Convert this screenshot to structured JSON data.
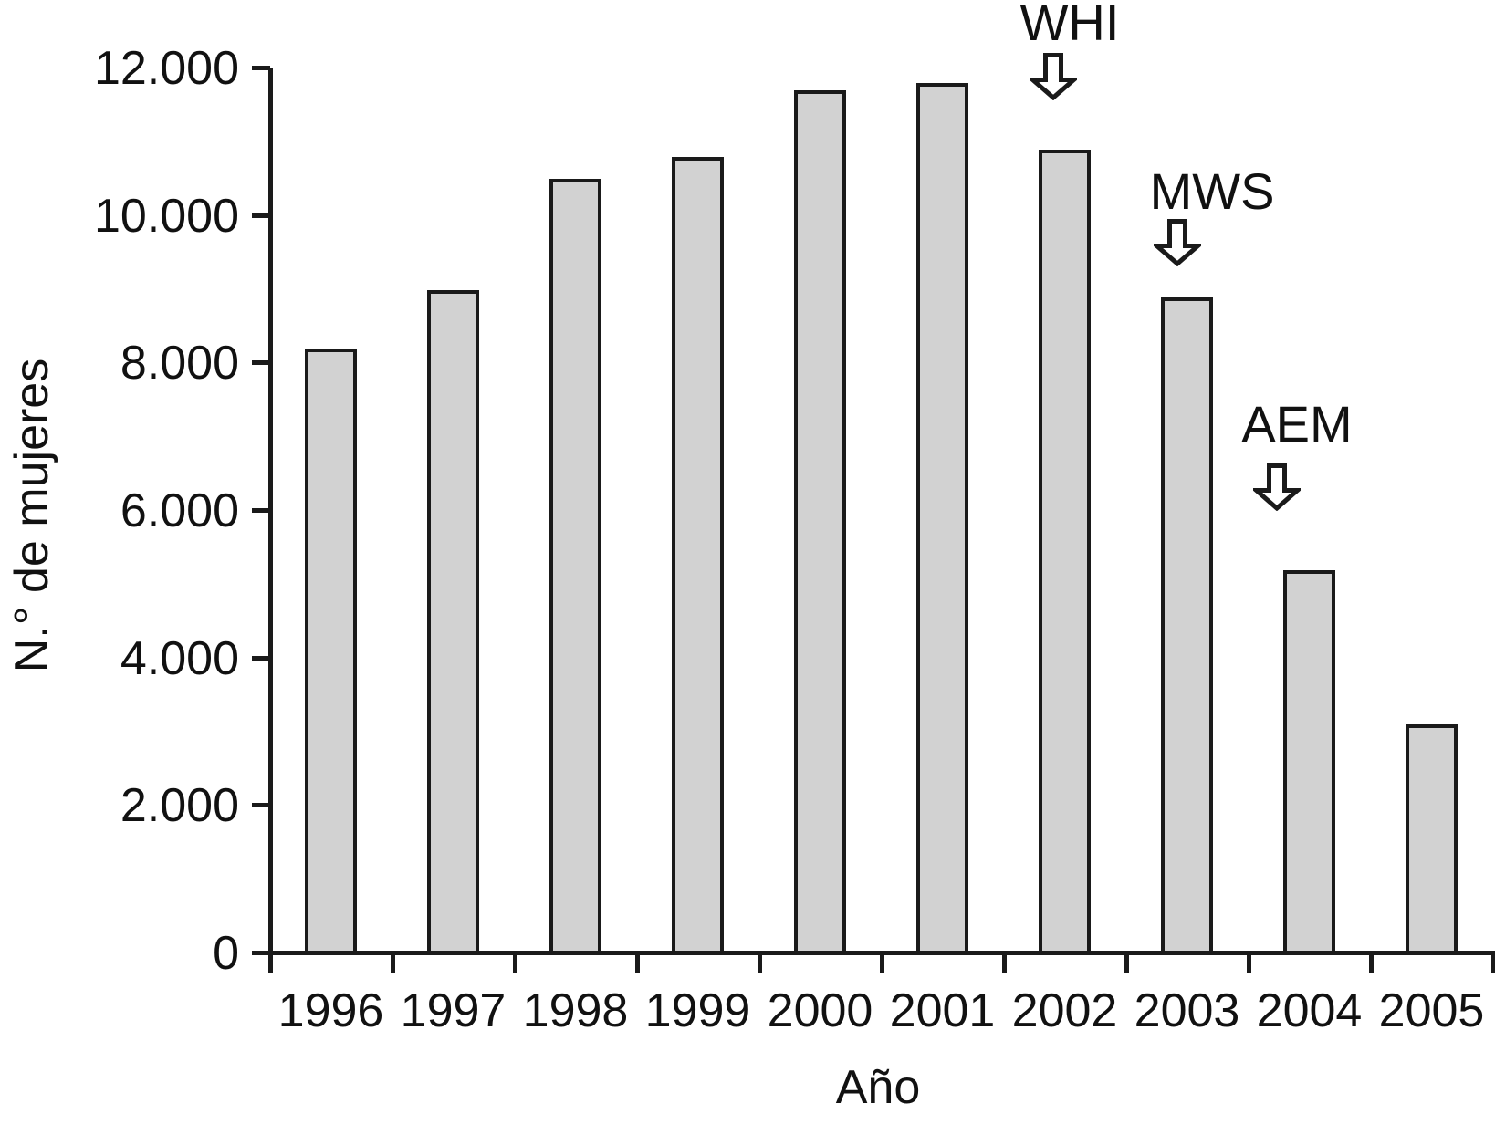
{
  "figure": {
    "background": "#ffffff"
  },
  "chart_data": {
    "type": "bar",
    "title": "",
    "xlabel": "Año",
    "ylabel": "N.° de mujeres",
    "categories": [
      "1996",
      "1997",
      "1998",
      "1999",
      "2000",
      "2001",
      "2002",
      "2003",
      "2004",
      "2005"
    ],
    "values": [
      8200,
      9000,
      10500,
      10800,
      11700,
      11800,
      10900,
      8900,
      5200,
      3100
    ],
    "ylim": [
      0,
      12000
    ],
    "ytick_values": [
      0,
      2000,
      4000,
      6000,
      8000,
      10000,
      12000
    ],
    "ytick_labels": [
      "0",
      "2.000",
      "4.000",
      "6.000",
      "8.000",
      "10.000",
      "12.000"
    ],
    "grid": false,
    "legend": null,
    "bar_color": "#d2d2d2",
    "bar_border_color": "#1a1a1a",
    "axis_color": "#1a1a1a",
    "text_color": "#111111",
    "annotations": [
      {
        "label": "WHI",
        "target_year": "2002"
      },
      {
        "label": "MWS",
        "target_year": "2003"
      },
      {
        "label": "AEM",
        "target_year": "2004"
      }
    ]
  }
}
